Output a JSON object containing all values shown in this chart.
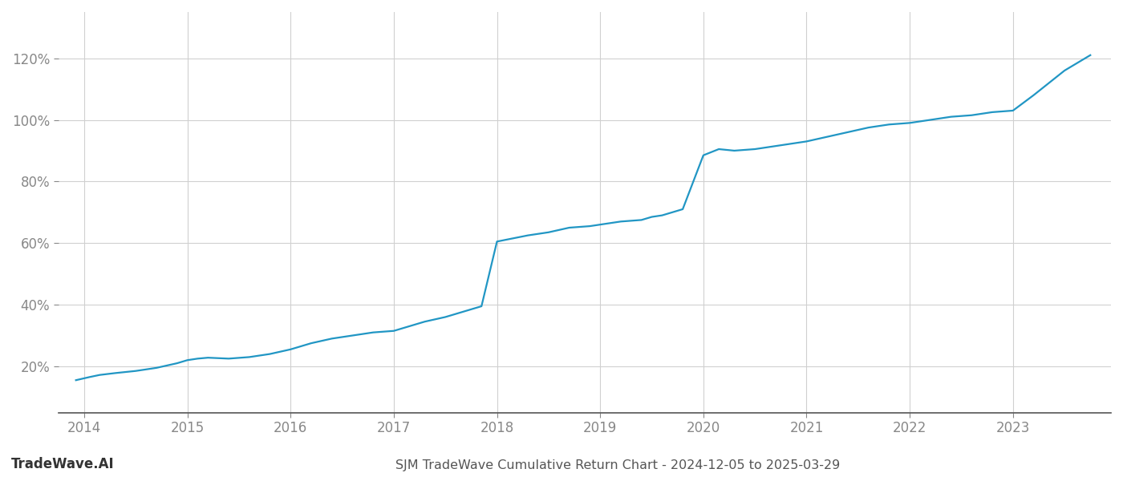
{
  "title": "SJM TradeWave Cumulative Return Chart - 2024-12-05 to 2025-03-29",
  "watermark": "TradeWave.AI",
  "line_color": "#2196c4",
  "line_width": 1.6,
  "background_color": "#ffffff",
  "grid_color": "#d0d0d0",
  "x_values": [
    2013.92,
    2014.05,
    2014.15,
    2014.3,
    2014.5,
    2014.7,
    2014.9,
    2015.0,
    2015.1,
    2015.2,
    2015.4,
    2015.6,
    2015.8,
    2016.0,
    2016.2,
    2016.4,
    2016.6,
    2016.8,
    2017.0,
    2017.1,
    2017.3,
    2017.5,
    2017.7,
    2017.85,
    2018.0,
    2018.15,
    2018.3,
    2018.5,
    2018.7,
    2018.9,
    2019.0,
    2019.2,
    2019.4,
    2019.5,
    2019.6,
    2019.8,
    2020.0,
    2020.15,
    2020.3,
    2020.5,
    2020.7,
    2020.9,
    2021.0,
    2021.2,
    2021.4,
    2021.6,
    2021.8,
    2022.0,
    2022.2,
    2022.4,
    2022.6,
    2022.8,
    2023.0,
    2023.2,
    2023.5,
    2023.75
  ],
  "y_values": [
    15.5,
    16.5,
    17.2,
    17.8,
    18.5,
    19.5,
    21.0,
    22.0,
    22.5,
    22.8,
    22.5,
    23.0,
    24.0,
    25.5,
    27.5,
    29.0,
    30.0,
    31.0,
    31.5,
    32.5,
    34.5,
    36.0,
    38.0,
    39.5,
    60.5,
    61.5,
    62.5,
    63.5,
    65.0,
    65.5,
    66.0,
    67.0,
    67.5,
    68.5,
    69.0,
    71.0,
    88.5,
    90.5,
    90.0,
    90.5,
    91.5,
    92.5,
    93.0,
    94.5,
    96.0,
    97.5,
    98.5,
    99.0,
    100.0,
    101.0,
    101.5,
    102.5,
    103.0,
    108.0,
    116.0,
    121.0
  ],
  "xlim": [
    2013.75,
    2023.95
  ],
  "ylim": [
    5,
    135
  ],
  "xticks": [
    2014,
    2015,
    2016,
    2017,
    2018,
    2019,
    2020,
    2021,
    2022,
    2023
  ],
  "yticks": [
    20,
    40,
    60,
    80,
    100,
    120
  ],
  "tick_fontsize": 12,
  "title_fontsize": 11.5,
  "watermark_fontsize": 12
}
